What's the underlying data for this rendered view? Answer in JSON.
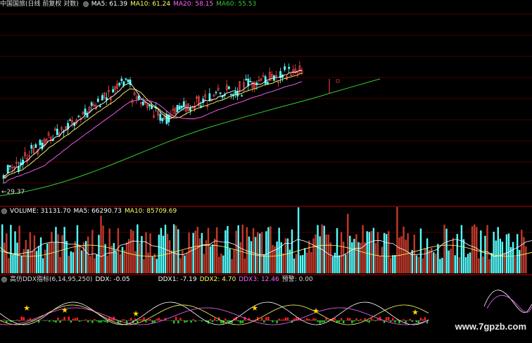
{
  "price_panel": {
    "title": "中国国旅(日线 前复权 对数)",
    "ma5": "MA5: 61.39",
    "ma10": "MA10: 61.24",
    "ma20": "MA20: 58.15",
    "ma60": "MA60: 55.53",
    "low_label": "←29.37"
  },
  "volume_panel": {
    "volume": "VOLUME: 31131.70",
    "ma5": "MA5: 66290.73",
    "ma10": "MA10: 85709.69"
  },
  "ddx_panel": {
    "title": "高仿DDX指标(6,14,95,250)",
    "ddx": "DDX: -0.05",
    "ddx1": "DDX1: -7.19",
    "ddx2": "DDX2: 4.70",
    "ddx3": "DDX3: 12.46",
    "alert": "预警: 0.00"
  },
  "watermark": "www.7gpzb.com",
  "colors": {
    "up": "#ff4a4a",
    "down": "#54ffff",
    "ma5": "#ffffff",
    "ma10": "#ffff66",
    "ma20": "#ff66ff",
    "ma60": "#33cc33",
    "grid": "#8b0000",
    "star": "#ffd700"
  }
}
